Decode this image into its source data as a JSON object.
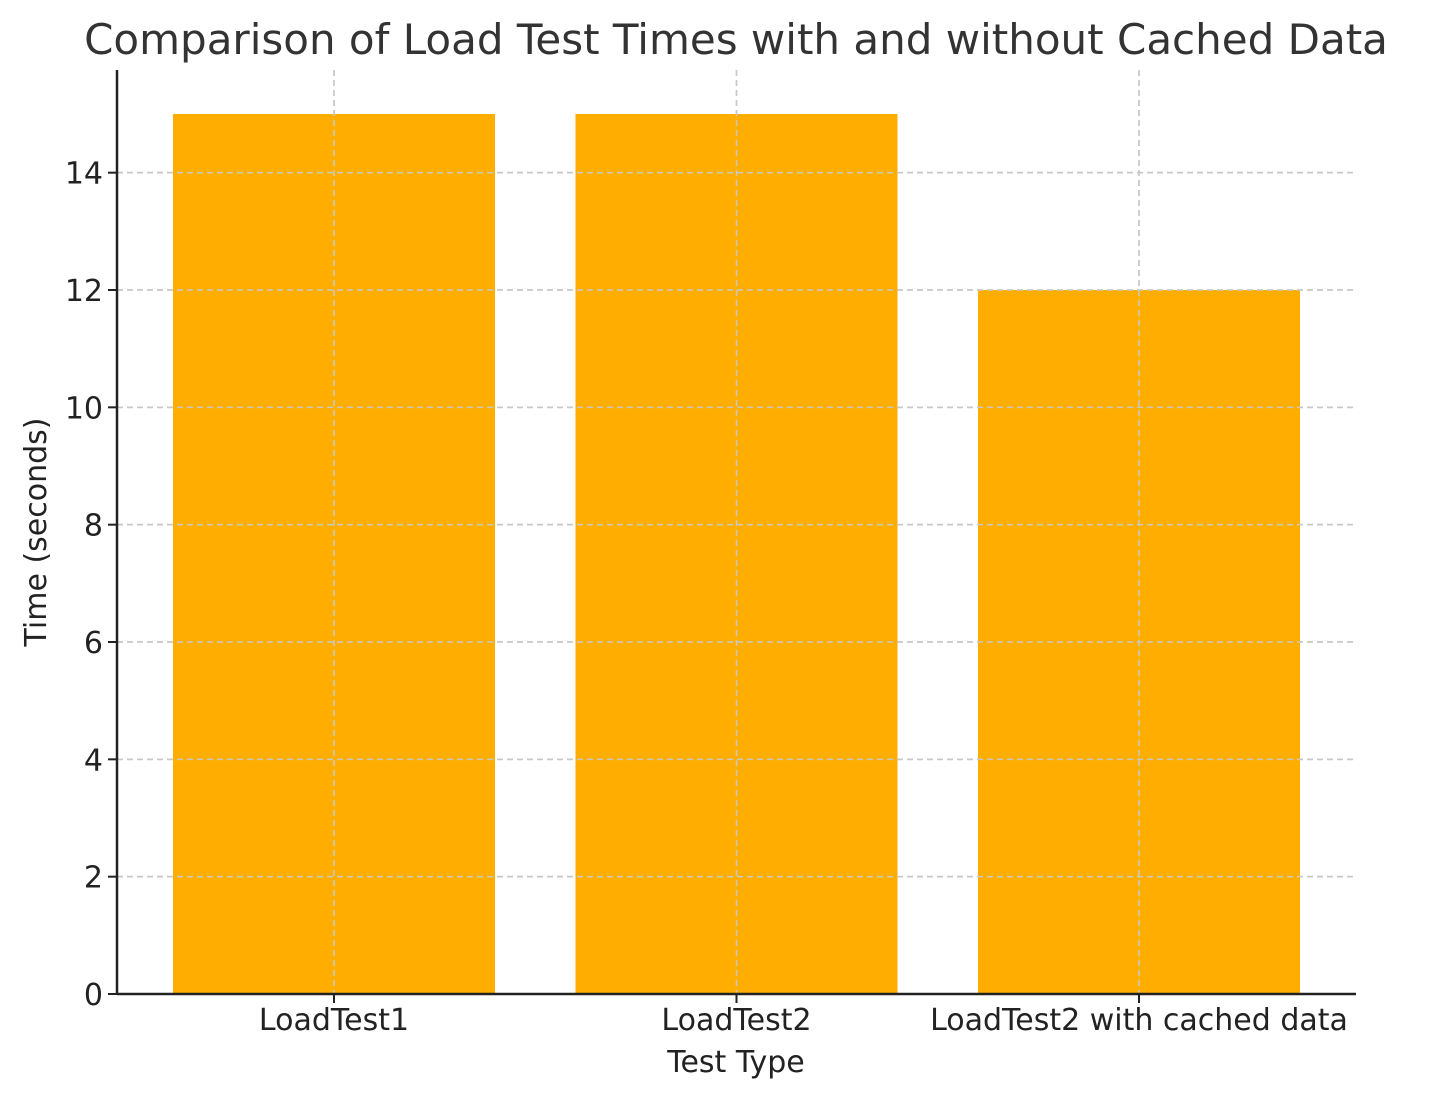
{
  "chart_data": {
    "type": "bar",
    "title": "Comparison of Load Test Times with and without Cached Data",
    "xlabel": "Test Type",
    "ylabel": "Time (seconds)",
    "categories": [
      "LoadTest1",
      "LoadTest2",
      "LoadTest2 with cached data"
    ],
    "values": [
      15,
      15,
      12
    ],
    "ylim": [
      0,
      15.75
    ],
    "yticks": [
      0,
      2,
      4,
      6,
      8,
      10,
      12,
      14
    ],
    "bar_color": "#FFAE00",
    "grid": true,
    "legend": "none"
  }
}
